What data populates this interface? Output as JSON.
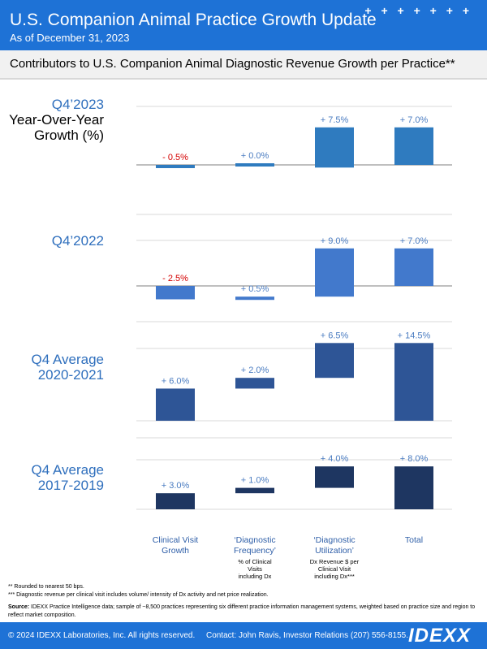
{
  "header": {
    "title": "U.S. Companion Animal Practice Growth Update",
    "subtitle": "As of December 31, 2023",
    "stars": "+ + + + + + +"
  },
  "banner": {
    "title": "Contributors to U.S. Companion Animal Diagnostic Revenue Growth per Practice**"
  },
  "chart_data": {
    "type": "bar",
    "subtype": "waterfall",
    "categories": [
      "Clinical Visit Growth",
      "‘Diagnostic Frequency’",
      "‘Diagnostic Utilization’",
      "Total"
    ],
    "category_notes": [
      "",
      "% of Clinical Visits including Dx",
      "Dx Revenue $ per Clinical Visit including Dx***",
      ""
    ],
    "panels": [
      {
        "label_lines": [
          "Q4’2023",
          "Year-Over-Year",
          "Growth (%)"
        ],
        "values": [
          -0.5,
          0.0,
          7.5,
          7.0
        ],
        "value_labels": [
          "- 0.5%",
          "+ 0.0%",
          "+ 7.5%",
          "+ 7.0%"
        ],
        "color": "#2f7bbf"
      },
      {
        "label_lines": [
          "Q4’2022"
        ],
        "values": [
          -2.5,
          0.5,
          9.0,
          7.0
        ],
        "value_labels": [
          "- 2.5%",
          "+ 0.5%",
          "+ 9.0%",
          "+ 7.0%"
        ],
        "color": "#4279cc"
      },
      {
        "label_lines": [
          "Q4 Average",
          "2020-2021"
        ],
        "values": [
          6.0,
          2.0,
          6.5,
          14.5
        ],
        "value_labels": [
          "+ 6.0%",
          "+ 2.0%",
          "+ 6.5%",
          "+ 14.5%"
        ],
        "color": "#2e5596"
      },
      {
        "label_lines": [
          "Q4 Average",
          "2017-2019"
        ],
        "values": [
          3.0,
          1.0,
          4.0,
          8.0
        ],
        "value_labels": [
          "+ 3.0%",
          "+ 1.0%",
          "+ 4.0%",
          "+ 8.0%"
        ],
        "color": "#1e3661"
      }
    ],
    "colors": {
      "panel_label": "#2f6fbd",
      "negative_label": "#d40000",
      "positive_label": "#4a7cc1",
      "category_label": "#2f5fa8"
    }
  },
  "footnotes": {
    "rounding": "** Rounded to nearest 50 bps.",
    "dx_revenue": "*** Diagnostic revenue per clinical visit includes volume/ intensity of Dx activity and net price realization.",
    "source_label": "Source:",
    "source_text": " IDEXX Practice Intelligence data; sample of ~8,500 practices representing six different practice information management systems, weighted based on practice size and region to reflect market composition."
  },
  "footer": {
    "copyright": "© 2024 IDEXX Laboratories, Inc. All rights reserved.",
    "contact": "Contact: John Ravis, Investor Relations (207) 556-8155.",
    "logo": "IDEXX"
  }
}
